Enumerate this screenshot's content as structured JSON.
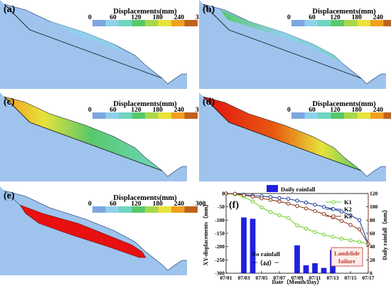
{
  "colorbar": {
    "title": "Displacements(mm)",
    "ticks": [
      "0",
      "60",
      "120",
      "180",
      "240",
      "300"
    ],
    "colors": [
      "#7ea6e0",
      "#8fd0ea",
      "#6fd6c0",
      "#58c86a",
      "#a8d84a",
      "#e8e23a",
      "#f0a020",
      "#c0621c"
    ]
  },
  "panels": [
    {
      "label": "(a)",
      "stage": "initial"
    },
    {
      "label": "(b)",
      "stage": "thin"
    },
    {
      "label": "(c)",
      "stage": "mid"
    },
    {
      "label": "(d)",
      "stage": "high"
    },
    {
      "label": "(e)",
      "stage": "failed"
    }
  ],
  "chart_data": {
    "label": "(f)",
    "type": "line+bar",
    "x": [
      "07/01",
      "07/02",
      "07/03",
      "07/04",
      "07/05",
      "07/06",
      "07/07",
      "07/08",
      "07/09",
      "07/10",
      "07/11",
      "07/12",
      "07/13",
      "07/14",
      "07/15",
      "07/16",
      "07/17"
    ],
    "x_ticks": [
      "07/01",
      "07/03",
      "07/05",
      "07/07",
      "07/09",
      "07/11",
      "07/13",
      "07/15",
      "07/17"
    ],
    "xlabel": "Date（Mouth/Day）",
    "ylabel_left": "XY-displacements（mm）",
    "ylabel_right": "Daily rainfall（mm）",
    "ylim_left": [
      -300,
      0
    ],
    "yticks_left": [
      "0",
      "-50",
      "-100",
      "-150",
      "-200",
      "-250",
      "-300"
    ],
    "ylim_right": [
      0,
      120
    ],
    "yticks_right": [
      "0",
      "20",
      "40",
      "60",
      "80",
      "100",
      "120"
    ],
    "series": [
      {
        "name": "K1",
        "type": "line",
        "color": "#6fcf2e",
        "values": [
          0,
          -3,
          -12,
          -30,
          -52,
          -70,
          -82,
          -92,
          -120,
          -132,
          -145,
          -155,
          -163,
          -170,
          -176,
          -182,
          -190
        ]
      },
      {
        "name": "K2",
        "type": "line",
        "color": "#1f3e9c",
        "values": [
          0,
          -1,
          -4,
          -8,
          -10,
          -13,
          -17,
          -20,
          -27,
          -34,
          -42,
          -50,
          -58,
          -68,
          -82,
          -100,
          -190
        ]
      },
      {
        "name": "K3",
        "type": "line",
        "color": "#8b3a1a",
        "values": [
          0,
          -1,
          -6,
          -12,
          -18,
          -24,
          -30,
          -38,
          -47,
          -56,
          -66,
          -77,
          -90,
          -103,
          -118,
          -135,
          -190
        ]
      },
      {
        "name": "Daily rainfall",
        "type": "bar",
        "color": "#2020e0",
        "values": [
          0,
          0,
          84,
          82,
          0,
          0,
          0,
          0,
          42,
          12,
          15,
          8,
          35,
          0,
          0,
          0,
          0
        ]
      }
    ],
    "annotations": {
      "no_rainfall": "No rainfall",
      "duration": "（4d）",
      "failure_line1": "Landslide",
      "failure_line2": "failure"
    }
  }
}
